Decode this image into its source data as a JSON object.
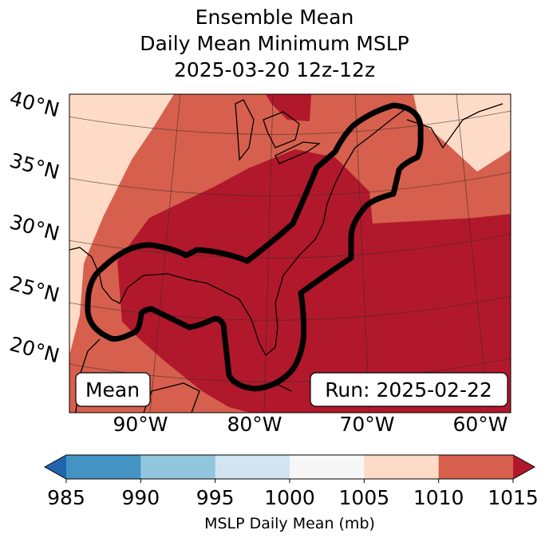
{
  "title": {
    "line1": "Ensemble Mean",
    "line2": "Daily Mean Minimum MSLP",
    "line3": "2025-03-20 12z-12z"
  },
  "map": {
    "lat_labels": [
      "40°N",
      "35°N",
      "30°N",
      "25°N",
      "20°N"
    ],
    "lon_labels": [
      "90°W",
      "80°W",
      "70°W",
      "60°W"
    ],
    "label_left": "Mean",
    "label_right": "Run: 2025-02-22",
    "contour_color": "#000000"
  },
  "colorbar": {
    "ticks": [
      "985",
      "990",
      "995",
      "1000",
      "1005",
      "1010",
      "1015"
    ],
    "colors": [
      "#2166ac",
      "#4393c3",
      "#92c5de",
      "#d1e5f0",
      "#f7f7f7",
      "#fddbc7",
      "#d6604d",
      "#b2182b"
    ],
    "label": "MSLP Daily Mean (mb)"
  }
}
